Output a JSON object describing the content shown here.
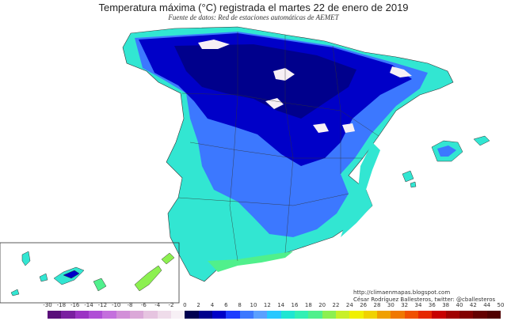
{
  "title": "Temperatura máxima (°C) registrada el martes 22 de enero de 2019",
  "subtitle": "Fuente de datos: Red de estaciones automáticas de AEMET",
  "credits": {
    "url": "http://climaenmapas.blogspot.com",
    "author": "César Rodríguez Ballesteros, twitter: @cballesteros"
  },
  "legend": {
    "labels": [
      "-30",
      "-18",
      "-16",
      "-14",
      "-12",
      "-10",
      "-8",
      "-6",
      "-4",
      "-2",
      "0",
      "2",
      "4",
      "6",
      "8",
      "10",
      "12",
      "14",
      "16",
      "18",
      "20",
      "22",
      "24",
      "26",
      "28",
      "30",
      "32",
      "34",
      "36",
      "38",
      "40",
      "42",
      "44",
      "50"
    ],
    "colors": [
      "#5a0f7a",
      "#7a1fa0",
      "#9b33c4",
      "#b04fd6",
      "#c46fdd",
      "#d28fd8",
      "#dba8d8",
      "#e6c4e0",
      "#efdcea",
      "#f7f0f5",
      "#000050",
      "#00008c",
      "#0000c8",
      "#1e3cff",
      "#3c78ff",
      "#5aa0ff",
      "#28c8ff",
      "#1ee6d2",
      "#32f0b4",
      "#50f08c",
      "#8cf050",
      "#c8f028",
      "#f0f000",
      "#f0d200",
      "#f0a000",
      "#f07800",
      "#f05000",
      "#e62800",
      "#c80000",
      "#a00000",
      "#820000",
      "#640000",
      "#500000"
    ]
  },
  "map_colors": {
    "sea": "#ffffff",
    "coast_cyan": "#32e6d2",
    "mid_blue": "#3c78ff",
    "deep_blue": "#0000c8",
    "very_deep_blue": "#00008c",
    "snow": "#f7f0f5",
    "border": "#333333"
  }
}
